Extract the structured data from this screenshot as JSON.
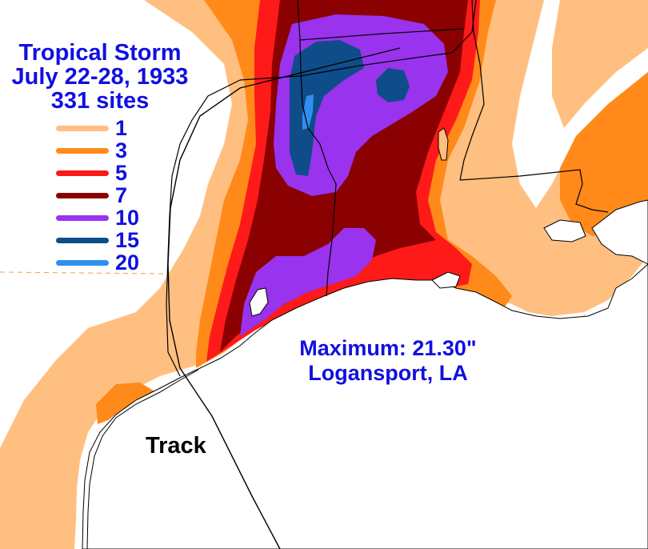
{
  "title": {
    "line1": "Tropical Storm",
    "line2": "July 22-28, 1933",
    "line3": "331 sites"
  },
  "legend": {
    "items": [
      {
        "label": "1",
        "color": "#ffbf80"
      },
      {
        "label": "3",
        "color": "#ff8a1a"
      },
      {
        "label": "5",
        "color": "#ff1a1a"
      },
      {
        "label": "7",
        "color": "#8b0000"
      },
      {
        "label": "10",
        "color": "#9933ee"
      },
      {
        "label": "15",
        "color": "#0f4c8a"
      },
      {
        "label": "20",
        "color": "#2f8fee"
      }
    ]
  },
  "maximum": {
    "line1": "Maximum:  21.30\"",
    "line2": "Logansport, LA"
  },
  "track": {
    "label": "Track"
  },
  "colors": {
    "text": "#1010e0",
    "water": "#ffffff",
    "boundary": "#000000",
    "gridline": "#e8a060"
  }
}
